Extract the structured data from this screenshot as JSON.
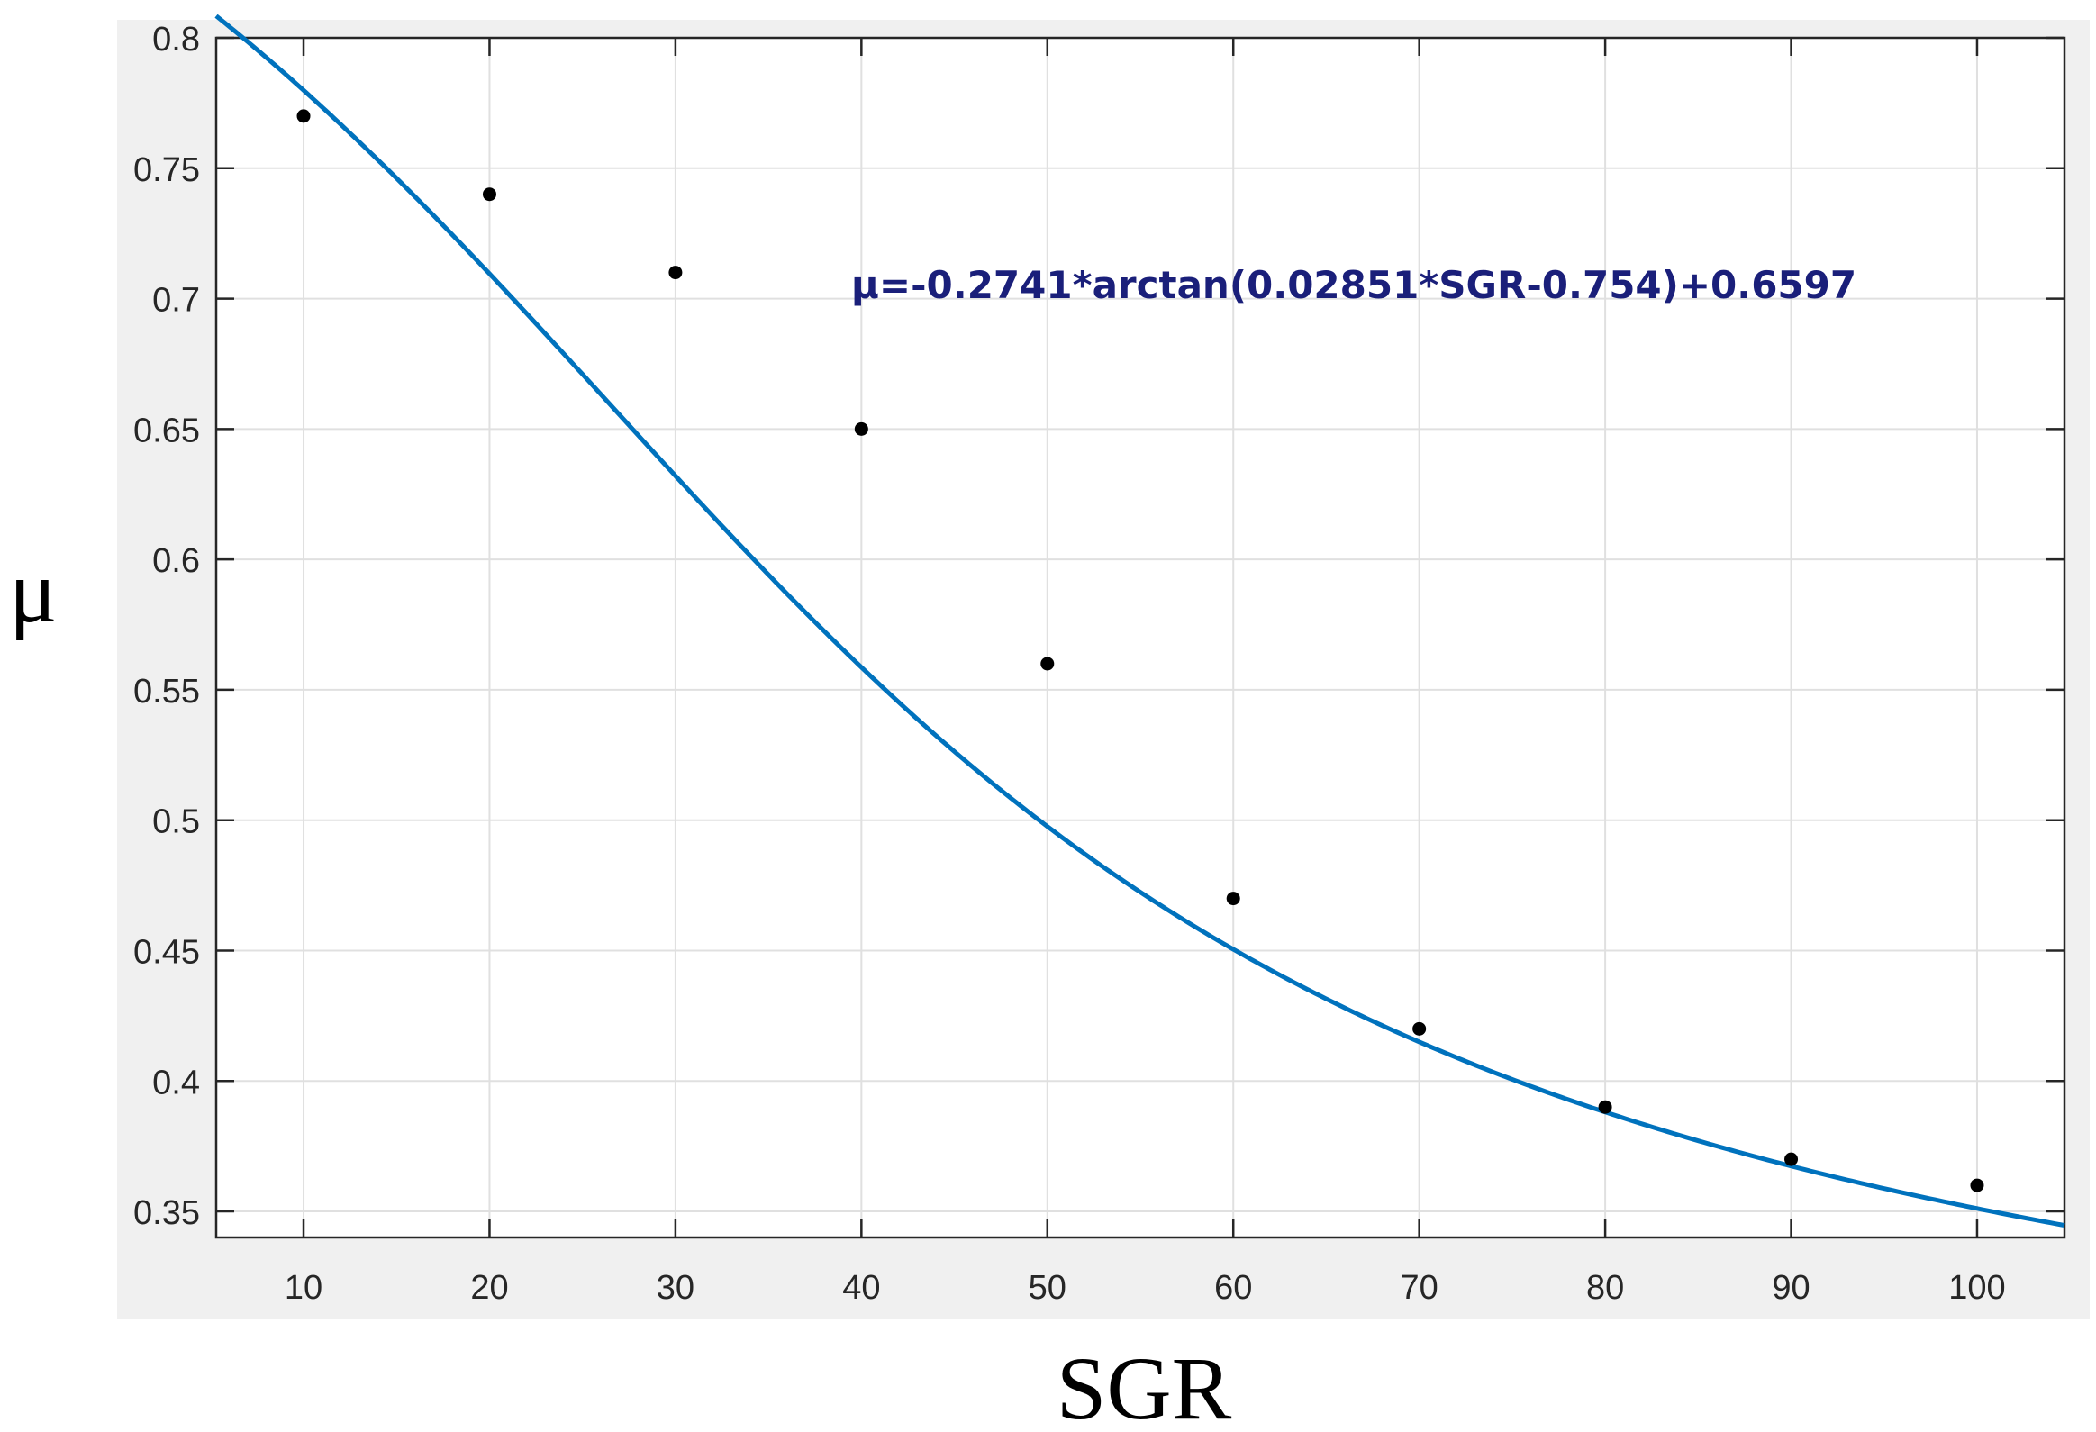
{
  "chart_data": {
    "type": "scatter",
    "xlabel": "SGR",
    "ylabel": "μ",
    "xlim": [
      5.3,
      104.7
    ],
    "ylim": [
      0.34,
      0.8
    ],
    "xticks": [
      10,
      20,
      30,
      40,
      50,
      60,
      70,
      80,
      90,
      100
    ],
    "yticks": [
      0.35,
      0.4,
      0.45,
      0.5,
      0.55,
      0.6,
      0.65,
      0.7,
      0.75,
      0.8
    ],
    "xtick_labels": [
      "10",
      "20",
      "30",
      "40",
      "50",
      "60",
      "70",
      "80",
      "90",
      "100"
    ],
    "ytick_labels": [
      "0.35",
      "0.4",
      "0.45",
      "0.5",
      "0.55",
      "0.6",
      "0.65",
      "0.7",
      "0.75",
      "0.8"
    ],
    "grid": true,
    "series": [
      {
        "type": "scatter",
        "x": [
          10,
          20,
          30,
          40,
          50,
          60,
          70,
          80,
          90,
          100
        ],
        "y": [
          0.77,
          0.74,
          0.71,
          0.65,
          0.56,
          0.47,
          0.42,
          0.39,
          0.37,
          0.36
        ],
        "color": "#000000"
      },
      {
        "type": "line",
        "fit": {
          "a": -0.2741,
          "b": 0.02851,
          "c": -0.754,
          "d": 0.6597
        },
        "color": "#0072BD"
      }
    ],
    "annotations": [
      {
        "text": "μ=-0.2741*arctan(0.02851*SGR-0.754)+0.6597",
        "color": "#1a1f7a"
      }
    ]
  }
}
